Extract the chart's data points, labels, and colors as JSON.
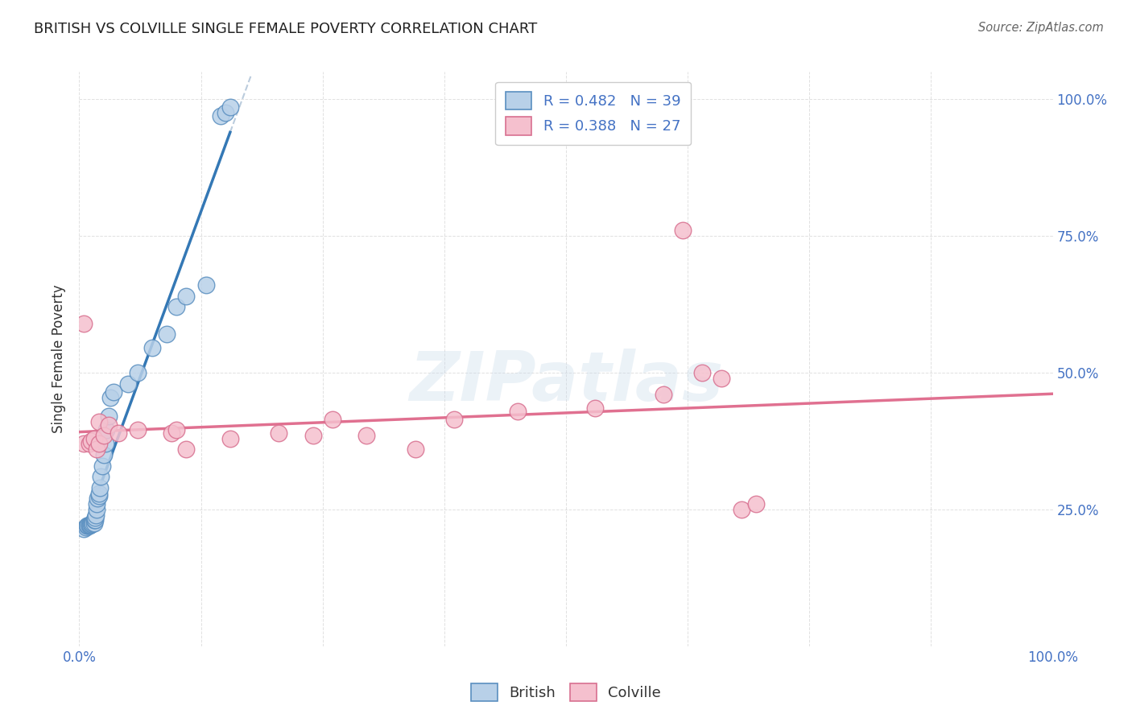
{
  "title": "BRITISH VS COLVILLE SINGLE FEMALE POVERTY CORRELATION CHART",
  "source_text": "Source: ZipAtlas.com",
  "ylabel": "Single Female Poverty",
  "watermark": "ZIPatlas",
  "british_R": 0.482,
  "british_N": 39,
  "colville_R": 0.388,
  "colville_N": 27,
  "british_color": "#b8d0e8",
  "british_edge_color": "#5a8fc0",
  "british_line_color": "#3478b5",
  "british_dash_color": "#bbccdd",
  "colville_color": "#f5c0ce",
  "colville_edge_color": "#d87090",
  "colville_line_color": "#e07090",
  "axis_label_color": "#4472c4",
  "title_color": "#222222",
  "grid_color": "#cccccc",
  "background_color": "#ffffff",
  "xlim": [
    0.0,
    1.0
  ],
  "ylim": [
    0.0,
    1.05
  ],
  "british_x": [
    0.005,
    0.007,
    0.008,
    0.009,
    0.01,
    0.01,
    0.011,
    0.012,
    0.013,
    0.014,
    0.015,
    0.015,
    0.016,
    0.016,
    0.017,
    0.018,
    0.018,
    0.019,
    0.02,
    0.02,
    0.021,
    0.022,
    0.024,
    0.025,
    0.027,
    0.028,
    0.03,
    0.032,
    0.035,
    0.05,
    0.06,
    0.075,
    0.09,
    0.1,
    0.11,
    0.13,
    0.145,
    0.15,
    0.155
  ],
  "british_y": [
    0.215,
    0.218,
    0.22,
    0.22,
    0.22,
    0.222,
    0.222,
    0.223,
    0.223,
    0.225,
    0.225,
    0.23,
    0.23,
    0.235,
    0.24,
    0.25,
    0.26,
    0.27,
    0.275,
    0.28,
    0.29,
    0.31,
    0.33,
    0.35,
    0.37,
    0.395,
    0.42,
    0.455,
    0.465,
    0.48,
    0.5,
    0.545,
    0.57,
    0.62,
    0.64,
    0.66,
    0.97,
    0.975,
    0.985
  ],
  "colville_x": [
    0.005,
    0.01,
    0.012,
    0.015,
    0.018,
    0.02,
    0.02,
    0.025,
    0.03,
    0.04,
    0.06,
    0.095,
    0.1,
    0.11,
    0.155,
    0.205,
    0.24,
    0.26,
    0.295,
    0.345,
    0.385,
    0.45,
    0.53,
    0.6,
    0.64,
    0.68,
    0.695
  ],
  "colville_y": [
    0.37,
    0.37,
    0.375,
    0.38,
    0.36,
    0.37,
    0.41,
    0.385,
    0.405,
    0.39,
    0.395,
    0.39,
    0.395,
    0.36,
    0.38,
    0.39,
    0.385,
    0.415,
    0.385,
    0.36,
    0.415,
    0.43,
    0.435,
    0.46,
    0.5,
    0.25,
    0.26
  ],
  "colville_special": [
    [
      0.005,
      0.59
    ],
    [
      0.62,
      0.76
    ],
    [
      0.66,
      0.49
    ]
  ]
}
